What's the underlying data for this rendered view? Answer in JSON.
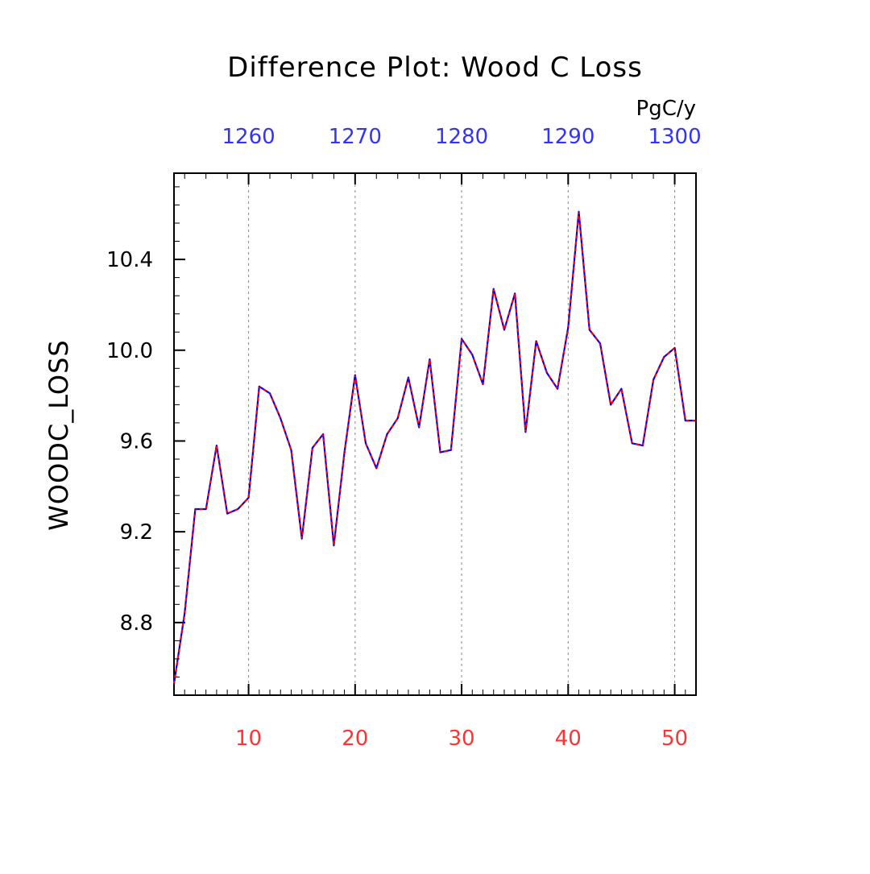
{
  "chart_data": {
    "type": "line",
    "title": "Difference Plot: Wood C Loss",
    "units": "PgC/y",
    "xlabel": "",
    "ylabel": "WOODC_LOSS",
    "x_range": [
      3,
      52
    ],
    "ylim": [
      8.48,
      10.78
    ],
    "x_ticks_bottom": [
      10,
      20,
      30,
      40,
      50
    ],
    "x_ticks_top": [
      1260,
      1270,
      1280,
      1290,
      1300
    ],
    "top_axis_offset": 1250,
    "y_ticks": [
      8.8,
      9.2,
      9.6,
      10.0,
      10.4
    ],
    "y_tick_labels": [
      "8.8",
      "9.2",
      "9.6",
      "10.0",
      "10.4"
    ],
    "grid": "vertical dashed at major x ticks",
    "colors": {
      "bottom_axis_labels": "#ff3333",
      "top_axis_labels": "#3333ff",
      "line_primary": "#0000ff",
      "line_overlay": "#ff0000",
      "grid": "#888888"
    },
    "series": [
      {
        "x": [
          3,
          4,
          5,
          6,
          7,
          8,
          9,
          10,
          11,
          12,
          13,
          14,
          15,
          16,
          17,
          18,
          19,
          20,
          21,
          22,
          23,
          24,
          25,
          26,
          27,
          28,
          29,
          30,
          31,
          32,
          33,
          34,
          35,
          36,
          37,
          38,
          39,
          40,
          41,
          42,
          43,
          44,
          45,
          46,
          47,
          48,
          49,
          50,
          51,
          52
        ],
        "values": [
          8.53,
          8.84,
          9.3,
          9.3,
          9.58,
          9.28,
          9.3,
          9.35,
          9.84,
          9.81,
          9.7,
          9.56,
          9.17,
          9.57,
          9.63,
          9.14,
          9.55,
          9.89,
          9.59,
          9.48,
          9.63,
          9.7,
          9.88,
          9.66,
          9.96,
          9.55,
          9.56,
          10.05,
          9.98,
          9.85,
          10.27,
          10.09,
          10.25,
          9.64,
          10.04,
          9.9,
          9.83,
          10.1,
          10.61,
          10.09,
          10.03,
          9.76,
          9.83,
          9.59,
          9.58,
          9.87,
          9.97,
          10.01,
          9.69,
          9.69
        ]
      }
    ]
  }
}
